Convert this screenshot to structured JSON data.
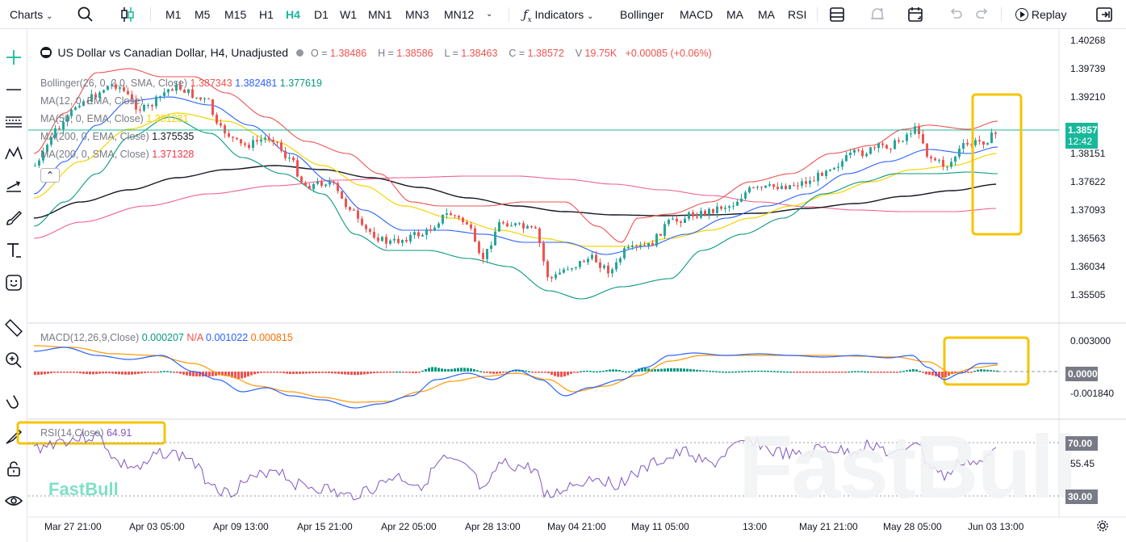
{
  "toolbar": {
    "charts_label": "Charts",
    "timeframes": [
      "M1",
      "M5",
      "M15",
      "H1",
      "H4",
      "D1",
      "W1",
      "MN1",
      "MN3",
      "MN12"
    ],
    "active_timeframe": "H4",
    "indicators_label": "Indicators",
    "quick_indicators": [
      "Bollinger",
      "MACD",
      "MA",
      "MA",
      "RSI"
    ],
    "replay_label": "Replay"
  },
  "symbol": {
    "title": "US Dollar vs Canadian Dollar, H4, Unadjusted",
    "o_label": "O",
    "o": "1.38486",
    "h_label": "H",
    "h": "1.38586",
    "l_label": "L",
    "l": "1.38463",
    "c_label": "C",
    "c": "1.38572",
    "v_label": "V",
    "v": "19.75K",
    "change": "+0.00085 (+0.06%)"
  },
  "indicators": {
    "bollinger": {
      "name": "Bollinger(26, 0, 2.0, SMA, Close)",
      "upper": "1.387343",
      "middle": "1.382481",
      "lower": "1.377619"
    },
    "ma12": {
      "name": "MA(12, 0, EMA, Close)",
      "value": ""
    },
    "ma50": {
      "name": "MA(50, 0, EMA, Close)",
      "value": "1.381281"
    },
    "ma200ema": {
      "name": "MA(200, 0, EMA, Close)",
      "value": "1.375535"
    },
    "ma200sma": {
      "name": "MA(200, 0, SMA, Close)",
      "value": "1.371328"
    },
    "macd": {
      "name": "MACD(12,26,9,Close)",
      "hist": "0.000207",
      "na": "N/A",
      "macd": "0.001022",
      "signal": "0.000815"
    },
    "rsi": {
      "name": "RSI(14,Close)",
      "value": "64.91"
    }
  },
  "price_axis": [
    "1.40268",
    "1.39739",
    "1.39210",
    "1.38151",
    "1.37622",
    "1.37093",
    "1.36563",
    "1.36034",
    "1.35505"
  ],
  "current_price": {
    "value": "1.38572",
    "countdown": "12:42"
  },
  "macd_axis": [
    "0.003000",
    "-0.001840"
  ],
  "macd_current": "0.000000",
  "rsi_axis": {
    "upper": "70.00",
    "mid": "55.45",
    "lower": "30.00"
  },
  "time_axis": [
    "Mar 27 21:00",
    "Apr 03 05:00",
    "Apr 09 13:00",
    "Apr 15 21:00",
    "Apr 22 05:00",
    "Apr 28 13:00",
    "May 04 21:00",
    "May 11 05:00",
    "13:00",
    "May 21 21:00",
    "May 28 05:00",
    "Jun 03 13:00"
  ],
  "watermark": "FastBull",
  "colors": {
    "accent": "#18b89a",
    "up": "#26a69a",
    "down": "#ef5350",
    "highlight": "#f5c400"
  }
}
